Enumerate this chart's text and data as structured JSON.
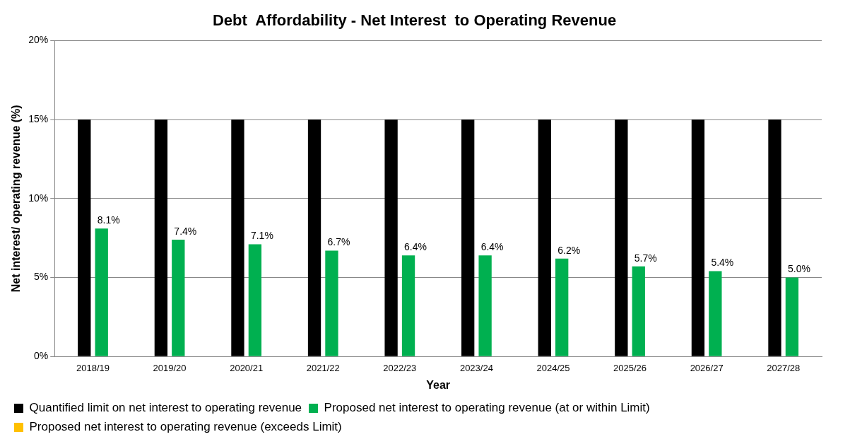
{
  "chart_data": {
    "type": "bar",
    "title": "Debt  Affordability - Net Interest  to Operating Revenue",
    "xlabel": "Year",
    "ylabel": "Net interest/ operating revenue (%)",
    "categories": [
      "2018/19",
      "2019/20",
      "2020/21",
      "2021/22",
      "2022/23",
      "2023/24",
      "2024/25",
      "2025/26",
      "2026/27",
      "2027/28"
    ],
    "series": [
      {
        "name": "Quantified limit on net interest to operating revenue",
        "color": "#000000",
        "values": [
          15,
          15,
          15,
          15,
          15,
          15,
          15,
          15,
          15,
          15
        ]
      },
      {
        "name": "Proposed net interest to operating revenue (at or within Limit)",
        "color": "#00b050",
        "values": [
          8.1,
          7.4,
          7.1,
          6.7,
          6.4,
          6.4,
          6.2,
          5.7,
          5.4,
          5.0
        ],
        "value_labels": [
          "8.1%",
          "7.4%",
          "7.1%",
          "6.7%",
          "6.4%",
          "6.4%",
          "6.2%",
          "5.7%",
          "5.4%",
          "5.0%"
        ]
      },
      {
        "name": "Proposed net interest to operating revenue (exceeds Limit)",
        "color": "#ffc000",
        "values": [
          null,
          null,
          null,
          null,
          null,
          null,
          null,
          null,
          null,
          null
        ]
      }
    ],
    "ylim": [
      0,
      20
    ],
    "yticks": [
      {
        "value": 0,
        "label": "0%"
      },
      {
        "value": 5,
        "label": "5%"
      },
      {
        "value": 10,
        "label": "10%"
      },
      {
        "value": 15,
        "label": "15%"
      },
      {
        "value": 20,
        "label": "20%"
      }
    ],
    "grid": "y",
    "legend": "bottom"
  }
}
